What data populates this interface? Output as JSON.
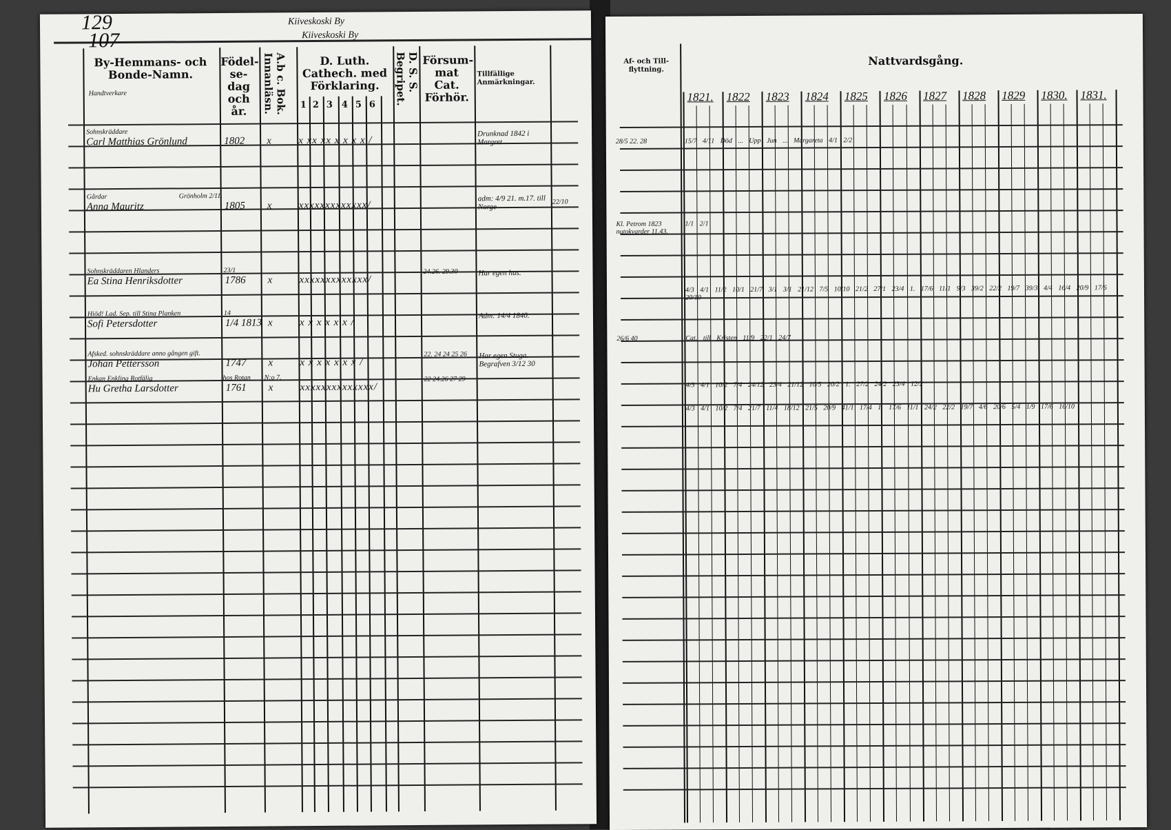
{
  "left_page": {
    "page_numbers": [
      "129",
      "107"
    ],
    "village_heading": [
      "Kiiveskoski By",
      "Kiiveskoski By"
    ],
    "headers": {
      "name": "By-Hemmans- och Bonde-Namn.",
      "name_sub": "Handtverkare",
      "birth": "Födel-se-dag och år.",
      "abc": "A.b c. Bok. Innanläsn.",
      "catechism": "D. Luth. Cathech. med Förklaring.",
      "catechism_cols": [
        "1",
        "2",
        "3",
        "4",
        "5",
        "6"
      ],
      "dss": "D. S. S. Begripet.",
      "missed": "Försum-mat Cat. Förhör.",
      "remarks": "Tillfällige Anmärkningar."
    },
    "entries": [
      {
        "title": "Sohnskräddare",
        "name": "Carl Matthias Grönlund",
        "birth": "1802",
        "abc": "x",
        "marks": "x xx xx x x x x /",
        "missed": "",
        "remarks": "Drunknad 1842 i Margret"
      },
      {
        "title": "Gårdar",
        "name": "Anna Mauritz",
        "note": "Grönholm 2/11.",
        "birth": "1805",
        "abc": "x",
        "marks": "xxxxxxxxxxxxx/",
        "missed": "",
        "remarks": "adm: 4/9 21. m.17. till Norge",
        "remarks_right": "22/10"
      },
      {
        "title": "Sohnskräddaren Hlanders",
        "name": "Ea Stina Henriksdotter",
        "birth_day": "23/1",
        "birth": "1786",
        "abc": "x",
        "marks": "xxxxxxxxxxxxx/",
        "missed": "24.26. 29.30",
        "remarks": "Har egen hus."
      },
      {
        "title": "Hiöd! Lad. Sep. till Stina Planken",
        "name": "Sofi Petersdotter",
        "birth_day": "14",
        "birth": "1/4 1813",
        "abc": "x",
        "marks": "x x x x x x /",
        "missed": "",
        "remarks": "Adm: 14/4 1840."
      },
      {
        "title": "Afsked. sohnskräddare anno gången gift.",
        "name": "Johan Pettersson",
        "birth": "1747",
        "abc": "x",
        "marks": "x x x x x x x /",
        "missed": "22. 24 24 25 26",
        "remarks": "Har egen Stuga. Begrafven 3/12 30"
      },
      {
        "title": "Enkan Enkling Rotfälig",
        "name": "Hu Gretha Larsdotter",
        "birth_note": "hos Rotan",
        "abc_note": "N:o 7.",
        "birth": "1761",
        "abc": "x",
        "marks": "xxxxxxxxxxxxxx/",
        "missed": "22 24.26 27 29",
        "remarks": ""
      }
    ]
  },
  "right_page": {
    "headers": {
      "moves": "Af- och Till-flyttning.",
      "communion": "Nattvardsgång.",
      "years": [
        "1821.",
        "1822",
        "1823",
        "1824",
        "1825",
        "1826",
        "1827",
        "1828",
        "1829",
        "1830.",
        "1831."
      ]
    },
    "entries": [
      {
        "moves": "28/5 22. 28",
        "communion": "15/7 4/11  Död ...  Upp Jun ... Margareta  4/1  2/2"
      },
      {
        "moves": "Kl. Petrom 1823  nutokvarder 11.43.",
        "communion": "1/1  2/1"
      },
      {
        "moves": "",
        "communion": "4/3 4/1 11/2 10/1 21/7 3/1 3/1 21/12 7/5 10/10 21/2 27/1 23/4 1. 17/6 11/1 9/3 39/2 22/2 19/7 39/3 4/4 16/4 20/9 17/6 20/10"
      },
      {
        "moves": "26/6 40",
        "communion": "Cat. till Kristen  11/9  22/1  24/7",
        "extra": "Cat. till Kristen"
      },
      {
        "moves": "",
        "communion": "4/3 4/1 10/2 7/4 24/12 23/4 21/12 10/5 20/2 1. 27/2 24/2 23/4 12/2"
      },
      {
        "moves": "",
        "communion": "4/3 4/1 10/2 7/4 21/7 11/4 18/12 21/5 20/9 41/1 17/4 1. 17/6 11/1 24/2 22/2 19/7 4/6 20/6 5/4 1/9 17/6 16/10"
      }
    ]
  }
}
